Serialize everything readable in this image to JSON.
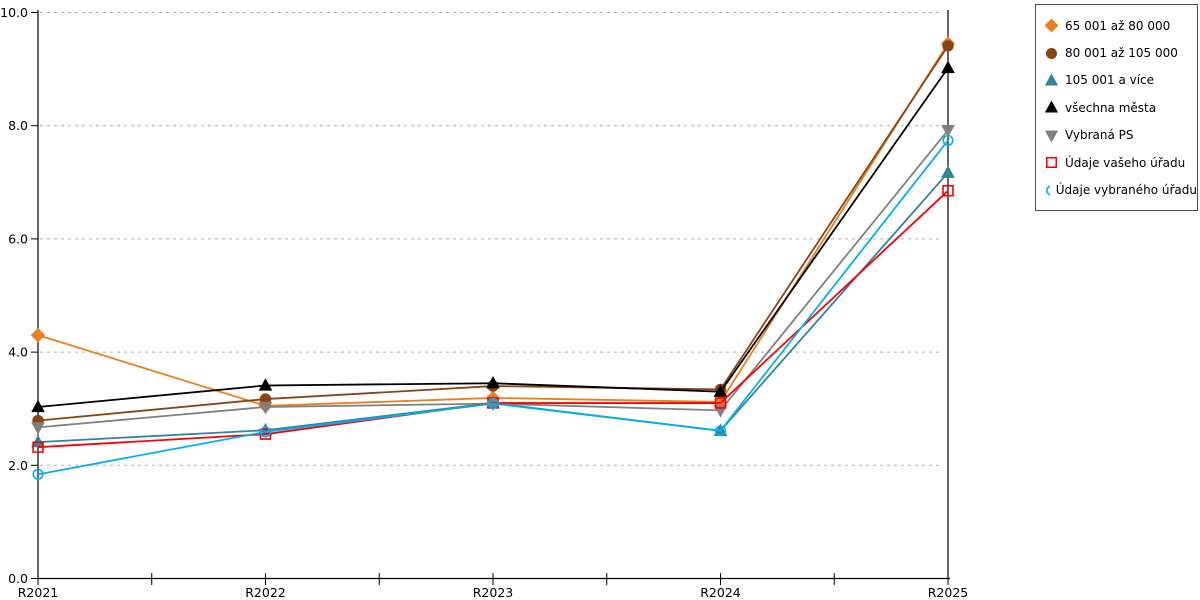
{
  "chart_data": {
    "type": "line",
    "title": "",
    "xlabel": "",
    "ylabel": "",
    "categories": [
      "R2021",
      "R2022",
      "R2023",
      "R2024",
      "R2025"
    ],
    "ylim": [
      0,
      10
    ],
    "yticks": [
      0,
      2,
      4,
      6,
      8,
      10
    ],
    "ytick_labels": [
      "0.0",
      "2.0",
      "4.0",
      "6.0",
      "8.0",
      "10.0"
    ],
    "grid": {
      "horizontal": true,
      "style": "dashed",
      "color": "#b0b0b0"
    },
    "axis_color": "#000000",
    "x_minor_ticks_between_categories": true,
    "legend": {
      "position": "top-right",
      "border_color": "#4d4d4d",
      "background": "#ffffff"
    },
    "series": [
      {
        "name": "65 001 až 80 000",
        "color": "#e8801e",
        "marker": "diamond",
        "fill": "solid",
        "values": [
          4.3,
          3.05,
          3.19,
          3.12,
          9.45
        ]
      },
      {
        "name": "80 001 až 105 000",
        "color": "#8b4513",
        "marker": "circle",
        "fill": "solid",
        "values": [
          2.79,
          3.17,
          3.4,
          3.34,
          9.41
        ]
      },
      {
        "name": "105 001 a více",
        "color": "#31859c",
        "marker": "triangle-up",
        "fill": "solid",
        "values": [
          2.41,
          2.62,
          3.1,
          2.61,
          7.17
        ]
      },
      {
        "name": "všechna města",
        "color": "#000000",
        "marker": "triangle-up",
        "fill": "solid",
        "values": [
          3.03,
          3.41,
          3.45,
          3.3,
          9.02
        ]
      },
      {
        "name": "Vybraná PS",
        "color": "#808080",
        "marker": "triangle-down",
        "fill": "solid",
        "values": [
          2.67,
          3.03,
          3.09,
          2.97,
          7.92
        ]
      },
      {
        "name": "Údaje vašeho úřadu",
        "color": "#ff0000",
        "marker": "square",
        "fill": "open",
        "values": [
          2.32,
          2.55,
          3.1,
          3.1,
          6.85
        ]
      },
      {
        "name": "Údaje vybraného úřadu",
        "color": "#00b0f0",
        "marker": "circle",
        "fill": "open",
        "values": [
          1.84,
          2.59,
          3.09,
          2.61,
          7.74
        ]
      }
    ]
  }
}
